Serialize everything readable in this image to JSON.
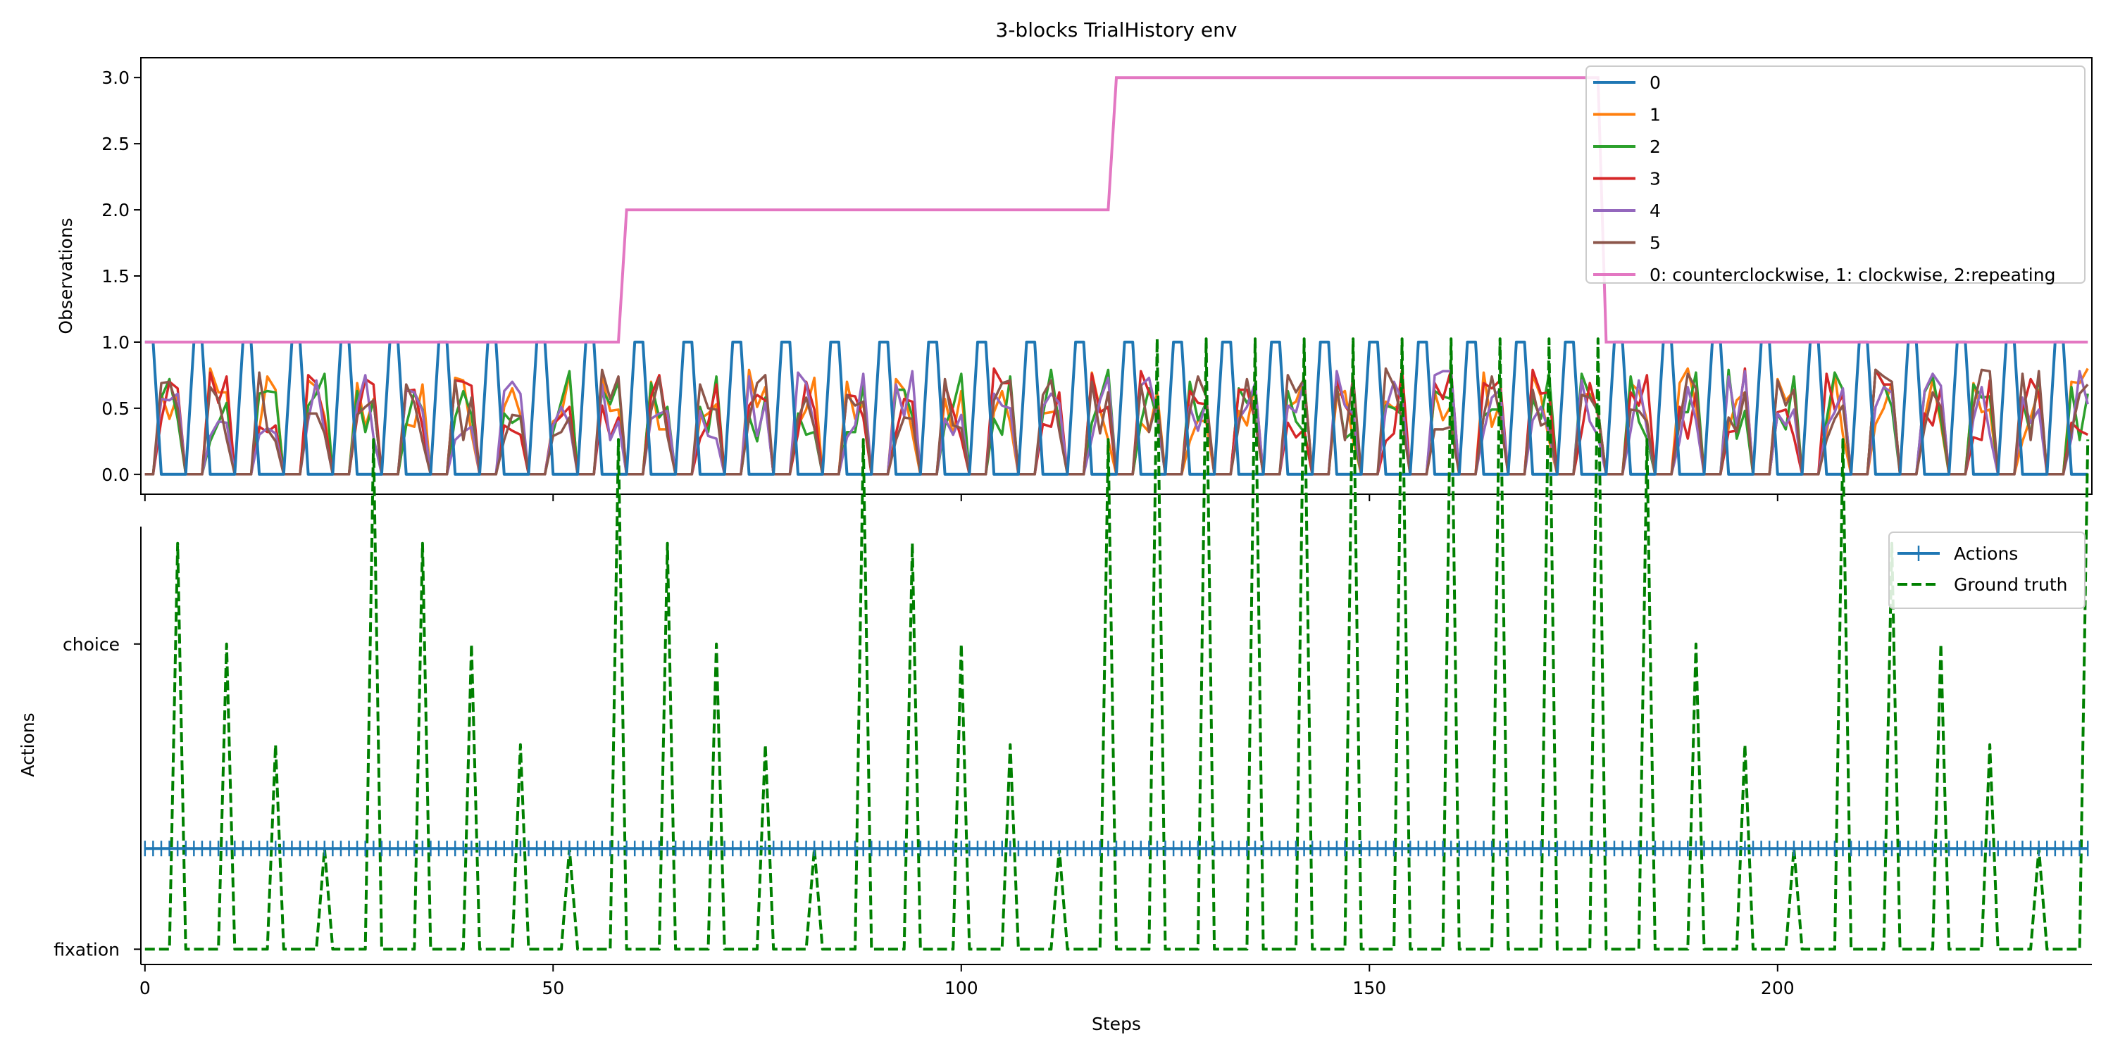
{
  "figure_title": "3-blocks TrialHistory  env",
  "chart_data": [
    {
      "type": "line",
      "ylabel": "Observations",
      "xlim": [
        -0.5,
        238.5
      ],
      "ylim": [
        -0.15,
        3.15
      ],
      "yticks": [
        0.0,
        0.5,
        1.0,
        1.5,
        2.0,
        2.5,
        3.0
      ],
      "ytick_labels": [
        "0.0",
        "0.5",
        "1.0",
        "1.5",
        "2.0",
        "2.5",
        "3.0"
      ],
      "xticks": [
        0,
        50,
        100,
        150,
        200
      ],
      "fixation": {
        "period": 6,
        "high_steps": [
          0,
          1
        ]
      },
      "stimulus_steps": [
        2,
        3,
        4
      ],
      "series": [
        {
          "name": "0",
          "color": "#1f77b4"
        },
        {
          "name": "1",
          "color": "#ff7f0e"
        },
        {
          "name": "2",
          "color": "#2ca02c"
        },
        {
          "name": "3",
          "color": "#d62728"
        },
        {
          "name": "4",
          "color": "#9467bd"
        },
        {
          "name": "5",
          "color": "#8c564b"
        },
        {
          "name": "0: counterclockwise, 1: clockwise, 2:repeating",
          "color": "#e377c2",
          "x": [
            0,
            58,
            59,
            118,
            119,
            178,
            179,
            238
          ],
          "y": [
            1,
            1,
            2,
            2,
            3,
            3,
            1,
            1
          ]
        }
      ],
      "legend_location": "top-right"
    },
    {
      "type": "line",
      "ylabel": "Actions",
      "xlabel": "Steps",
      "xlim": [
        -0.5,
        238.5
      ],
      "ylim": [
        -0.05,
        1.38
      ],
      "yticks": [
        0,
        1
      ],
      "ytick_labels": [
        "fixation",
        "choice"
      ],
      "xticks": [
        0,
        50,
        100,
        150,
        200
      ],
      "xtick_labels": [
        "0",
        "50",
        "100",
        "150",
        "200"
      ],
      "series": [
        {
          "name": "Actions",
          "color": "#1f77b4",
          "constant": 0.33,
          "marker": "+"
        },
        {
          "name": "Ground truth",
          "color": "#008000",
          "style": "dashed",
          "period": 6,
          "peak_step_in_trial": 4,
          "peak_values": [
            1.33,
            1.0,
            0.67,
            0.33,
            1.67,
            1.33,
            1.0,
            0.67,
            0.33,
            1.67,
            1.33,
            1.0,
            0.67,
            0.33,
            1.67,
            1.33,
            1.0,
            0.67,
            0.33,
            1.67,
            2.0,
            2.0,
            2.0,
            2.0,
            2.0,
            2.0,
            2.0,
            2.0,
            2.0,
            2.0,
            1.67,
            1.0,
            0.67,
            0.33,
            1.67,
            1.33,
            1.0,
            0.67,
            0.33,
            1.67
          ]
        }
      ],
      "legend_location": "top-right"
    }
  ]
}
